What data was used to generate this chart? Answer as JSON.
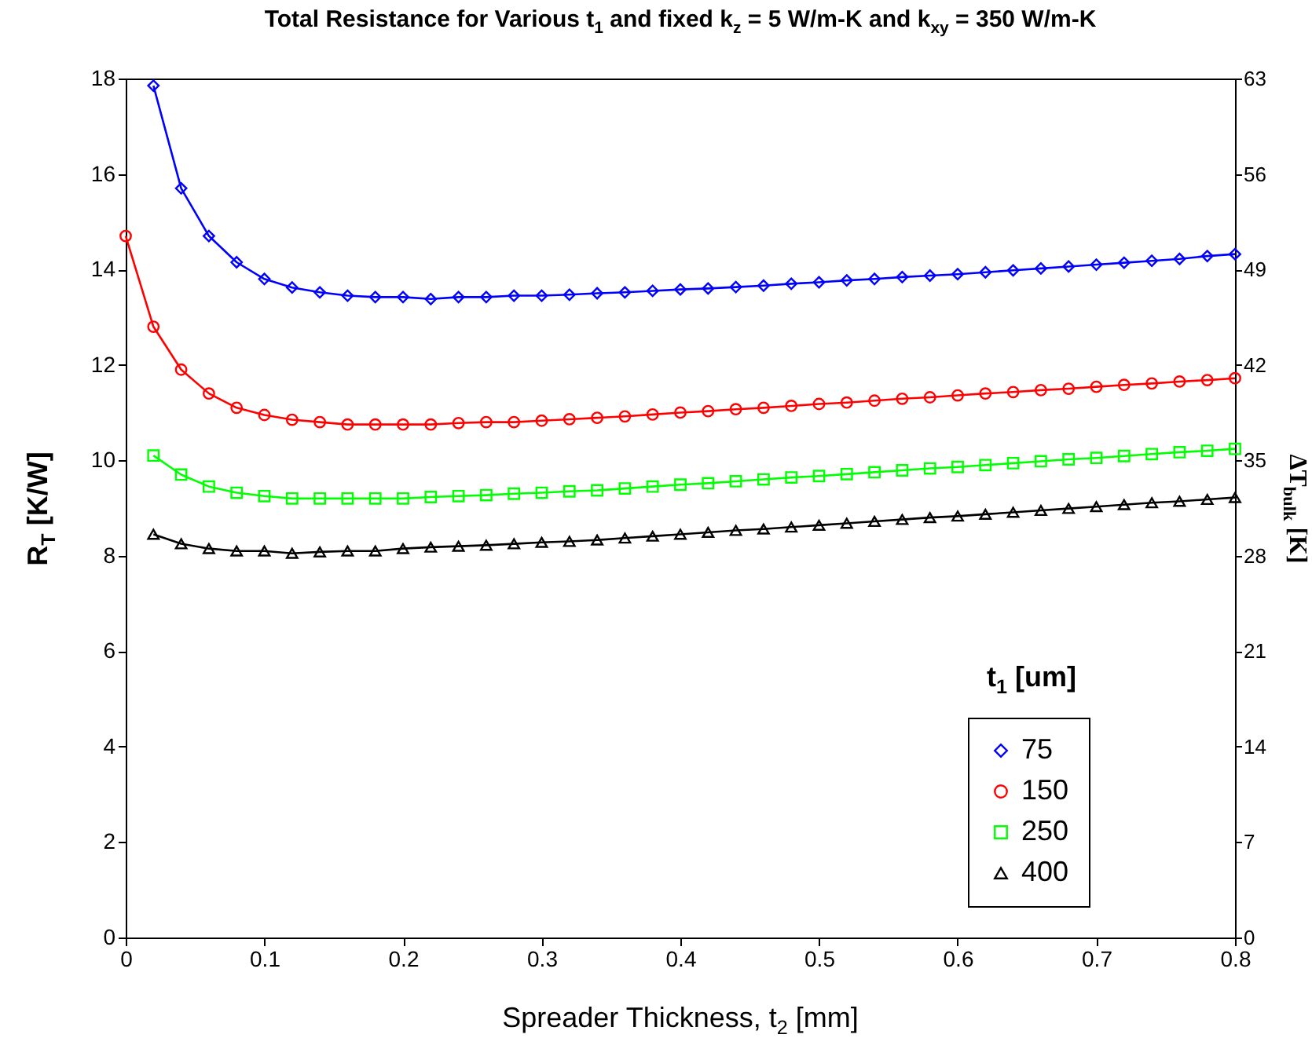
{
  "chart_data": {
    "type": "line",
    "title": "Total Resistance for Various t$_{1}$ and fixed k$_{z}$ = 5 W/m-K and k$_{xy}$ = 350 W/m-K",
    "xlabel": "Spreader Thickness, t$_{2}$  [mm]",
    "ylabel": "R$_{T}$  [K/W]",
    "y2label": "ΔT$_{bulk}$  [K]",
    "legend_title": "t$_{1}$  [um]",
    "x": [
      0.02,
      0.04,
      0.06,
      0.08,
      0.1,
      0.12,
      0.14,
      0.16,
      0.18,
      0.2,
      0.22,
      0.24,
      0.26,
      0.28,
      0.3,
      0.32,
      0.34,
      0.36,
      0.38,
      0.4,
      0.42,
      0.44,
      0.46,
      0.48,
      0.5,
      0.52,
      0.54,
      0.56,
      0.58,
      0.6,
      0.62,
      0.64,
      0.66,
      0.68,
      0.7,
      0.72,
      0.74,
      0.76,
      0.78,
      0.8
    ],
    "series": [
      {
        "name": "75",
        "color": "#0000ff",
        "marker": "diamond",
        "values": [
          17.85,
          15.7,
          14.7,
          14.15,
          13.8,
          13.62,
          13.52,
          13.45,
          13.42,
          13.42,
          13.38,
          13.42,
          13.42,
          13.45,
          13.45,
          13.47,
          13.5,
          13.52,
          13.55,
          13.58,
          13.6,
          13.63,
          13.66,
          13.7,
          13.73,
          13.77,
          13.8,
          13.84,
          13.87,
          13.9,
          13.94,
          13.98,
          14.02,
          14.06,
          14.1,
          14.14,
          14.18,
          14.22,
          14.28,
          14.32
        ]
      },
      {
        "name": "150",
        "color": "#ff0000",
        "marker": "circle",
        "x": [
          0,
          0.02,
          0.04,
          0.06,
          0.08,
          0.1,
          0.12,
          0.14,
          0.16,
          0.18,
          0.2,
          0.22,
          0.24,
          0.26,
          0.28,
          0.3,
          0.32,
          0.34,
          0.36,
          0.38,
          0.4,
          0.42,
          0.44,
          0.46,
          0.48,
          0.5,
          0.52,
          0.54,
          0.56,
          0.58,
          0.6,
          0.62,
          0.64,
          0.66,
          0.68,
          0.7,
          0.72,
          0.74,
          0.76,
          0.78,
          0.8
        ],
        "values": [
          14.7,
          12.8,
          11.9,
          11.4,
          11.1,
          10.95,
          10.85,
          10.8,
          10.75,
          10.75,
          10.75,
          10.75,
          10.78,
          10.8,
          10.8,
          10.83,
          10.86,
          10.89,
          10.92,
          10.96,
          11.0,
          11.03,
          11.07,
          11.1,
          11.14,
          11.18,
          11.21,
          11.25,
          11.29,
          11.32,
          11.36,
          11.4,
          11.43,
          11.47,
          11.5,
          11.54,
          11.58,
          11.61,
          11.65,
          11.68,
          11.72
        ]
      },
      {
        "name": "250",
        "color": "#00ff00",
        "marker": "square",
        "values": [
          10.1,
          9.7,
          9.45,
          9.32,
          9.25,
          9.2,
          9.2,
          9.2,
          9.2,
          9.2,
          9.23,
          9.25,
          9.27,
          9.3,
          9.32,
          9.35,
          9.37,
          9.41,
          9.45,
          9.49,
          9.52,
          9.56,
          9.6,
          9.64,
          9.67,
          9.71,
          9.75,
          9.79,
          9.83,
          9.86,
          9.9,
          9.94,
          9.98,
          10.02,
          10.05,
          10.09,
          10.13,
          10.17,
          10.2,
          10.24
        ]
      },
      {
        "name": "400",
        "color": "#000000",
        "marker": "triangle",
        "values": [
          8.45,
          8.25,
          8.15,
          8.1,
          8.1,
          8.05,
          8.08,
          8.1,
          8.1,
          8.15,
          8.18,
          8.2,
          8.22,
          8.25,
          8.28,
          8.3,
          8.33,
          8.37,
          8.41,
          8.45,
          8.49,
          8.53,
          8.56,
          8.6,
          8.64,
          8.68,
          8.72,
          8.76,
          8.8,
          8.83,
          8.87,
          8.91,
          8.95,
          8.99,
          9.03,
          9.07,
          9.11,
          9.14,
          9.18,
          9.22
        ]
      }
    ],
    "xlim": [
      0,
      0.8
    ],
    "xticks": [
      0,
      0.1,
      0.2,
      0.3,
      0.4,
      0.5,
      0.6,
      0.7,
      0.8
    ],
    "ylim": [
      0,
      18
    ],
    "yticks": [
      0,
      2,
      4,
      6,
      8,
      10,
      12,
      14,
      16,
      18
    ],
    "y2lim": [
      0,
      63
    ],
    "y2ticks": [
      0,
      7,
      14,
      21,
      28,
      35,
      42,
      49,
      56,
      63
    ],
    "grid": false,
    "legend": "bottom right"
  }
}
